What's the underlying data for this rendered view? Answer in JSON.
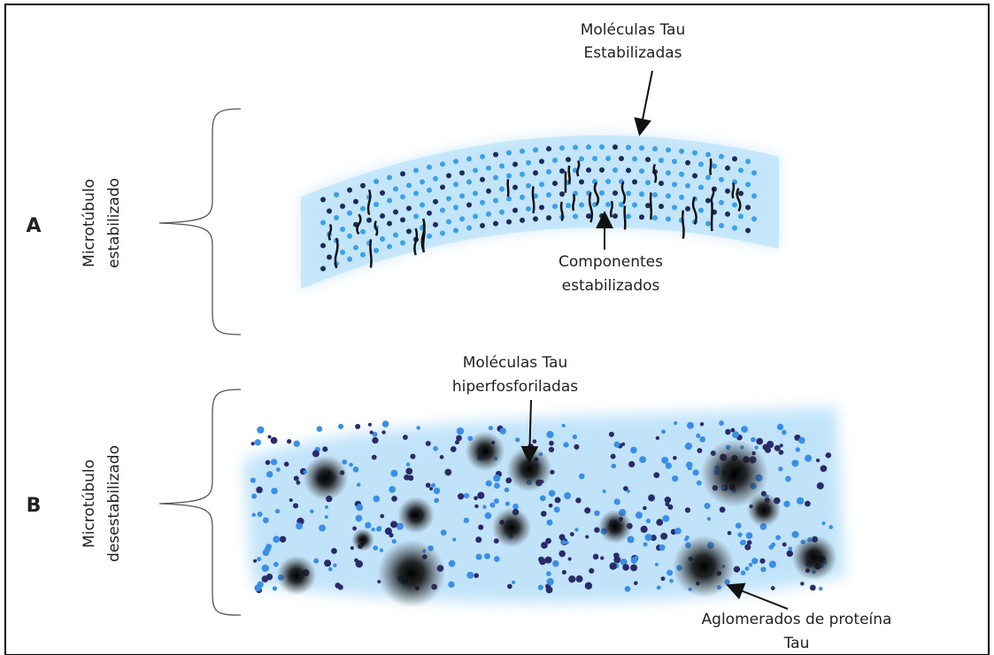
{
  "panels": [
    {
      "label": "A",
      "side_label": [
        "Microtúbulo",
        "estabilizado"
      ],
      "annotations": [
        {
          "lines": [
            "Moléculas Tau",
            "Estabilizadas"
          ]
        },
        {
          "lines": [
            "Componentes",
            "estabilizados"
          ]
        }
      ]
    },
    {
      "label": "B",
      "side_label": [
        "Microtúbulo",
        "desestabilizado"
      ],
      "annotations": [
        {
          "lines": [
            "Moléculas Tau",
            "hiperfosforiladas"
          ]
        },
        {
          "lines": [
            "Aglomerados de proteína",
            "Tau"
          ]
        }
      ]
    }
  ]
}
